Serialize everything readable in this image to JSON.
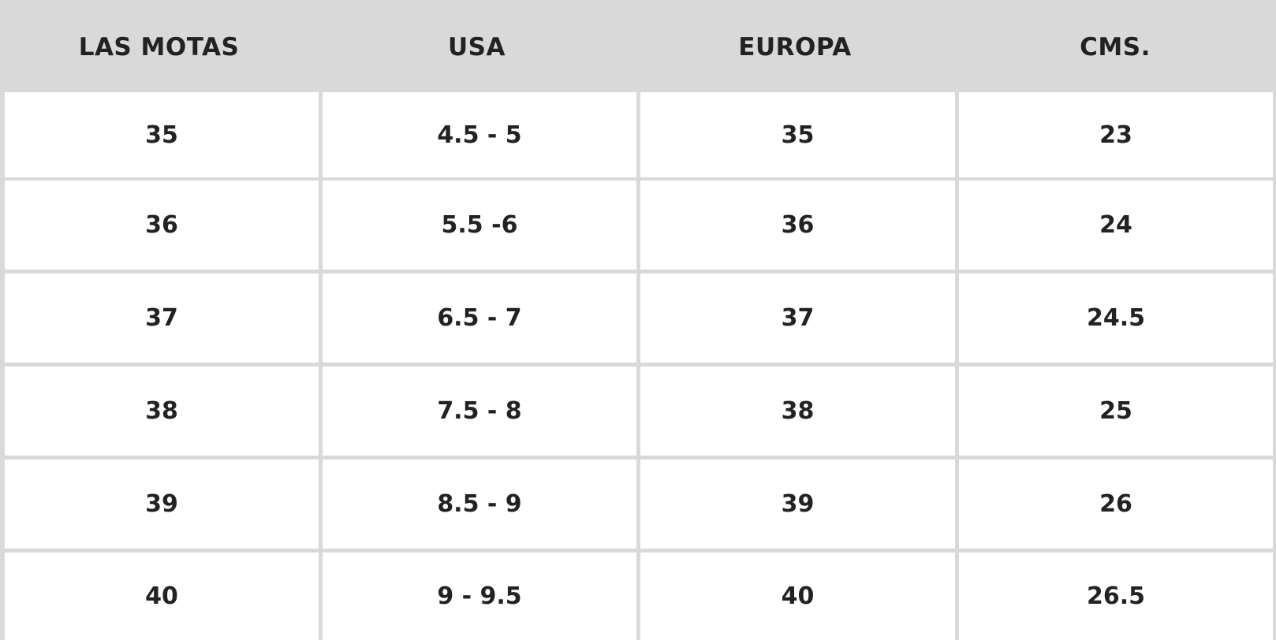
{
  "table": {
    "headers": [
      "LAS MOTAS",
      "USA",
      "EUROPA",
      "CMS."
    ],
    "rows": [
      [
        "35",
        "4.5 - 5",
        "35",
        "23"
      ],
      [
        "36",
        "5.5 -6",
        "36",
        "24"
      ],
      [
        "37",
        "6.5 - 7",
        "37",
        "24.5"
      ],
      [
        "38",
        "7.5 - 8",
        "38",
        "25"
      ],
      [
        "39",
        "8.5 - 9",
        "39",
        "26"
      ],
      [
        "40",
        "9 - 9.5",
        "40",
        "26.5"
      ]
    ]
  },
  "colors": {
    "header_bg": "#d9d9d9",
    "cell_bg": "#ffffff",
    "text": "#222222"
  }
}
